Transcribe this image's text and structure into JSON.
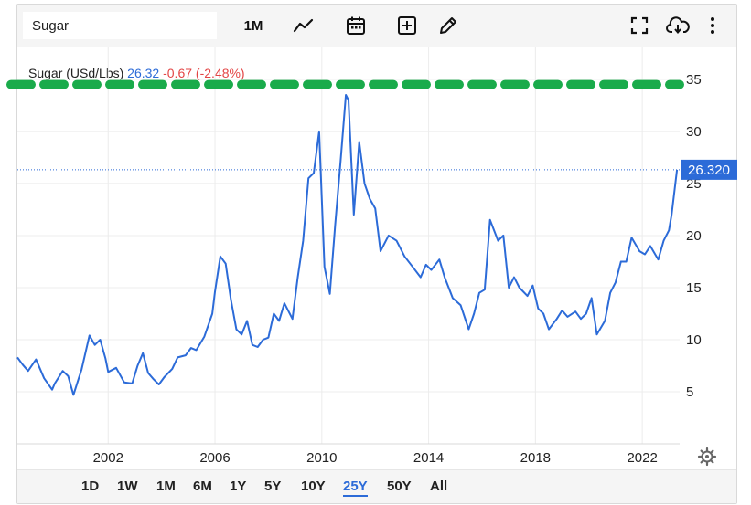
{
  "toolbar": {
    "symbol_value": "Sugar",
    "interval_label": "1M",
    "icons": [
      "line-chart-icon",
      "calendar-icon",
      "add-indicator-icon",
      "draw-pencil-icon",
      "fullscreen-icon",
      "download-cloud-icon",
      "more-vertical-icon"
    ]
  },
  "legend": {
    "name": "Sugar (USd/Lbs)",
    "last": "26.32",
    "change": "-0.67 (-2.48%)"
  },
  "price_label": "26.320",
  "ranges": [
    "1D",
    "1W",
    "1M",
    "6M",
    "1Y",
    "5Y",
    "10Y",
    "25Y",
    "50Y",
    "All"
  ],
  "active_range": "25Y",
  "colors": {
    "line": "#2c6bd8",
    "accent_dashed": "#1aab4b",
    "negative": "#e34545"
  },
  "chart_data": {
    "type": "line",
    "title": "Sugar (USd/Lbs)",
    "xlabel": "",
    "ylabel": "",
    "x_ticks": [
      "2002",
      "2006",
      "2010",
      "2014",
      "2018",
      "2022"
    ],
    "y_ticks": [
      5,
      10,
      15,
      20,
      25,
      30,
      35
    ],
    "xlim": [
      1998.6,
      2023.4
    ],
    "ylim": [
      0,
      38.5
    ],
    "grid": true,
    "annotations": [
      {
        "type": "dashed-horizontal-line",
        "y": 34.5,
        "color": "#1aab4b"
      }
    ],
    "series": [
      {
        "x": [
          1998.6,
          1998.8,
          1999.0,
          1999.3,
          1999.6,
          1999.9,
          2000.0,
          2000.3,
          2000.5,
          2000.7,
          2000.9,
          2001.0,
          2001.3,
          2001.5,
          2001.7,
          2001.9,
          2002.0,
          2002.3,
          2002.6,
          2002.9,
          2003.1,
          2003.3,
          2003.5,
          2003.7,
          2003.9,
          2004.1,
          2004.4,
          2004.6,
          2004.9,
          2005.1,
          2005.3,
          2005.6,
          2005.9,
          2006.0,
          2006.2,
          2006.4,
          2006.6,
          2006.8,
          2007.0,
          2007.2,
          2007.4,
          2007.6,
          2007.8,
          2008.0,
          2008.2,
          2008.4,
          2008.6,
          2008.9,
          2009.1,
          2009.3,
          2009.5,
          2009.7,
          2009.9,
          2010.1,
          2010.3,
          2010.5,
          2010.7,
          2010.9,
          2011.0,
          2011.2,
          2011.4,
          2011.6,
          2011.8,
          2012.0,
          2012.2,
          2012.5,
          2012.8,
          2013.1,
          2013.4,
          2013.7,
          2013.9,
          2014.1,
          2014.4,
          2014.6,
          2014.9,
          2015.2,
          2015.5,
          2015.7,
          2015.9,
          2016.1,
          2016.3,
          2016.6,
          2016.8,
          2017.0,
          2017.2,
          2017.4,
          2017.7,
          2017.9,
          2018.1,
          2018.3,
          2018.5,
          2018.8,
          2019.0,
          2019.2,
          2019.5,
          2019.7,
          2019.9,
          2020.1,
          2020.3,
          2020.6,
          2020.8,
          2021.0,
          2021.2,
          2021.4,
          2021.6,
          2021.9,
          2022.1,
          2022.3,
          2022.6,
          2022.8,
          2023.0,
          2023.1,
          2023.3
        ],
        "y": [
          8.3,
          7.6,
          7.0,
          8.1,
          6.3,
          5.2,
          5.8,
          7.0,
          6.5,
          4.7,
          6.3,
          7.1,
          10.4,
          9.5,
          10.0,
          8.2,
          6.9,
          7.3,
          5.9,
          5.8,
          7.5,
          8.7,
          6.8,
          6.2,
          5.7,
          6.4,
          7.2,
          8.3,
          8.5,
          9.2,
          9.0,
          10.3,
          12.5,
          14.6,
          18.0,
          17.3,
          13.8,
          11.0,
          10.5,
          11.8,
          9.5,
          9.3,
          10.0,
          10.2,
          12.5,
          11.8,
          13.5,
          12.0,
          16.0,
          19.5,
          25.5,
          26.0,
          30.0,
          17.0,
          14.4,
          21.0,
          27.0,
          33.5,
          33.0,
          22.0,
          29.0,
          25.0,
          23.5,
          22.6,
          18.5,
          20.0,
          19.5,
          18.0,
          17.0,
          16.0,
          17.2,
          16.7,
          17.7,
          16.0,
          14.0,
          13.3,
          11.0,
          12.5,
          14.5,
          14.8,
          21.5,
          19.5,
          20.0,
          15.0,
          16.0,
          15.0,
          14.2,
          15.2,
          13.0,
          12.5,
          11.0,
          12.0,
          12.8,
          12.2,
          12.7,
          12.0,
          12.5,
          14.0,
          10.5,
          11.8,
          14.5,
          15.5,
          17.5,
          17.5,
          19.8,
          18.5,
          18.2,
          19.0,
          17.7,
          19.5,
          20.5,
          22.0,
          26.32
        ]
      }
    ]
  }
}
